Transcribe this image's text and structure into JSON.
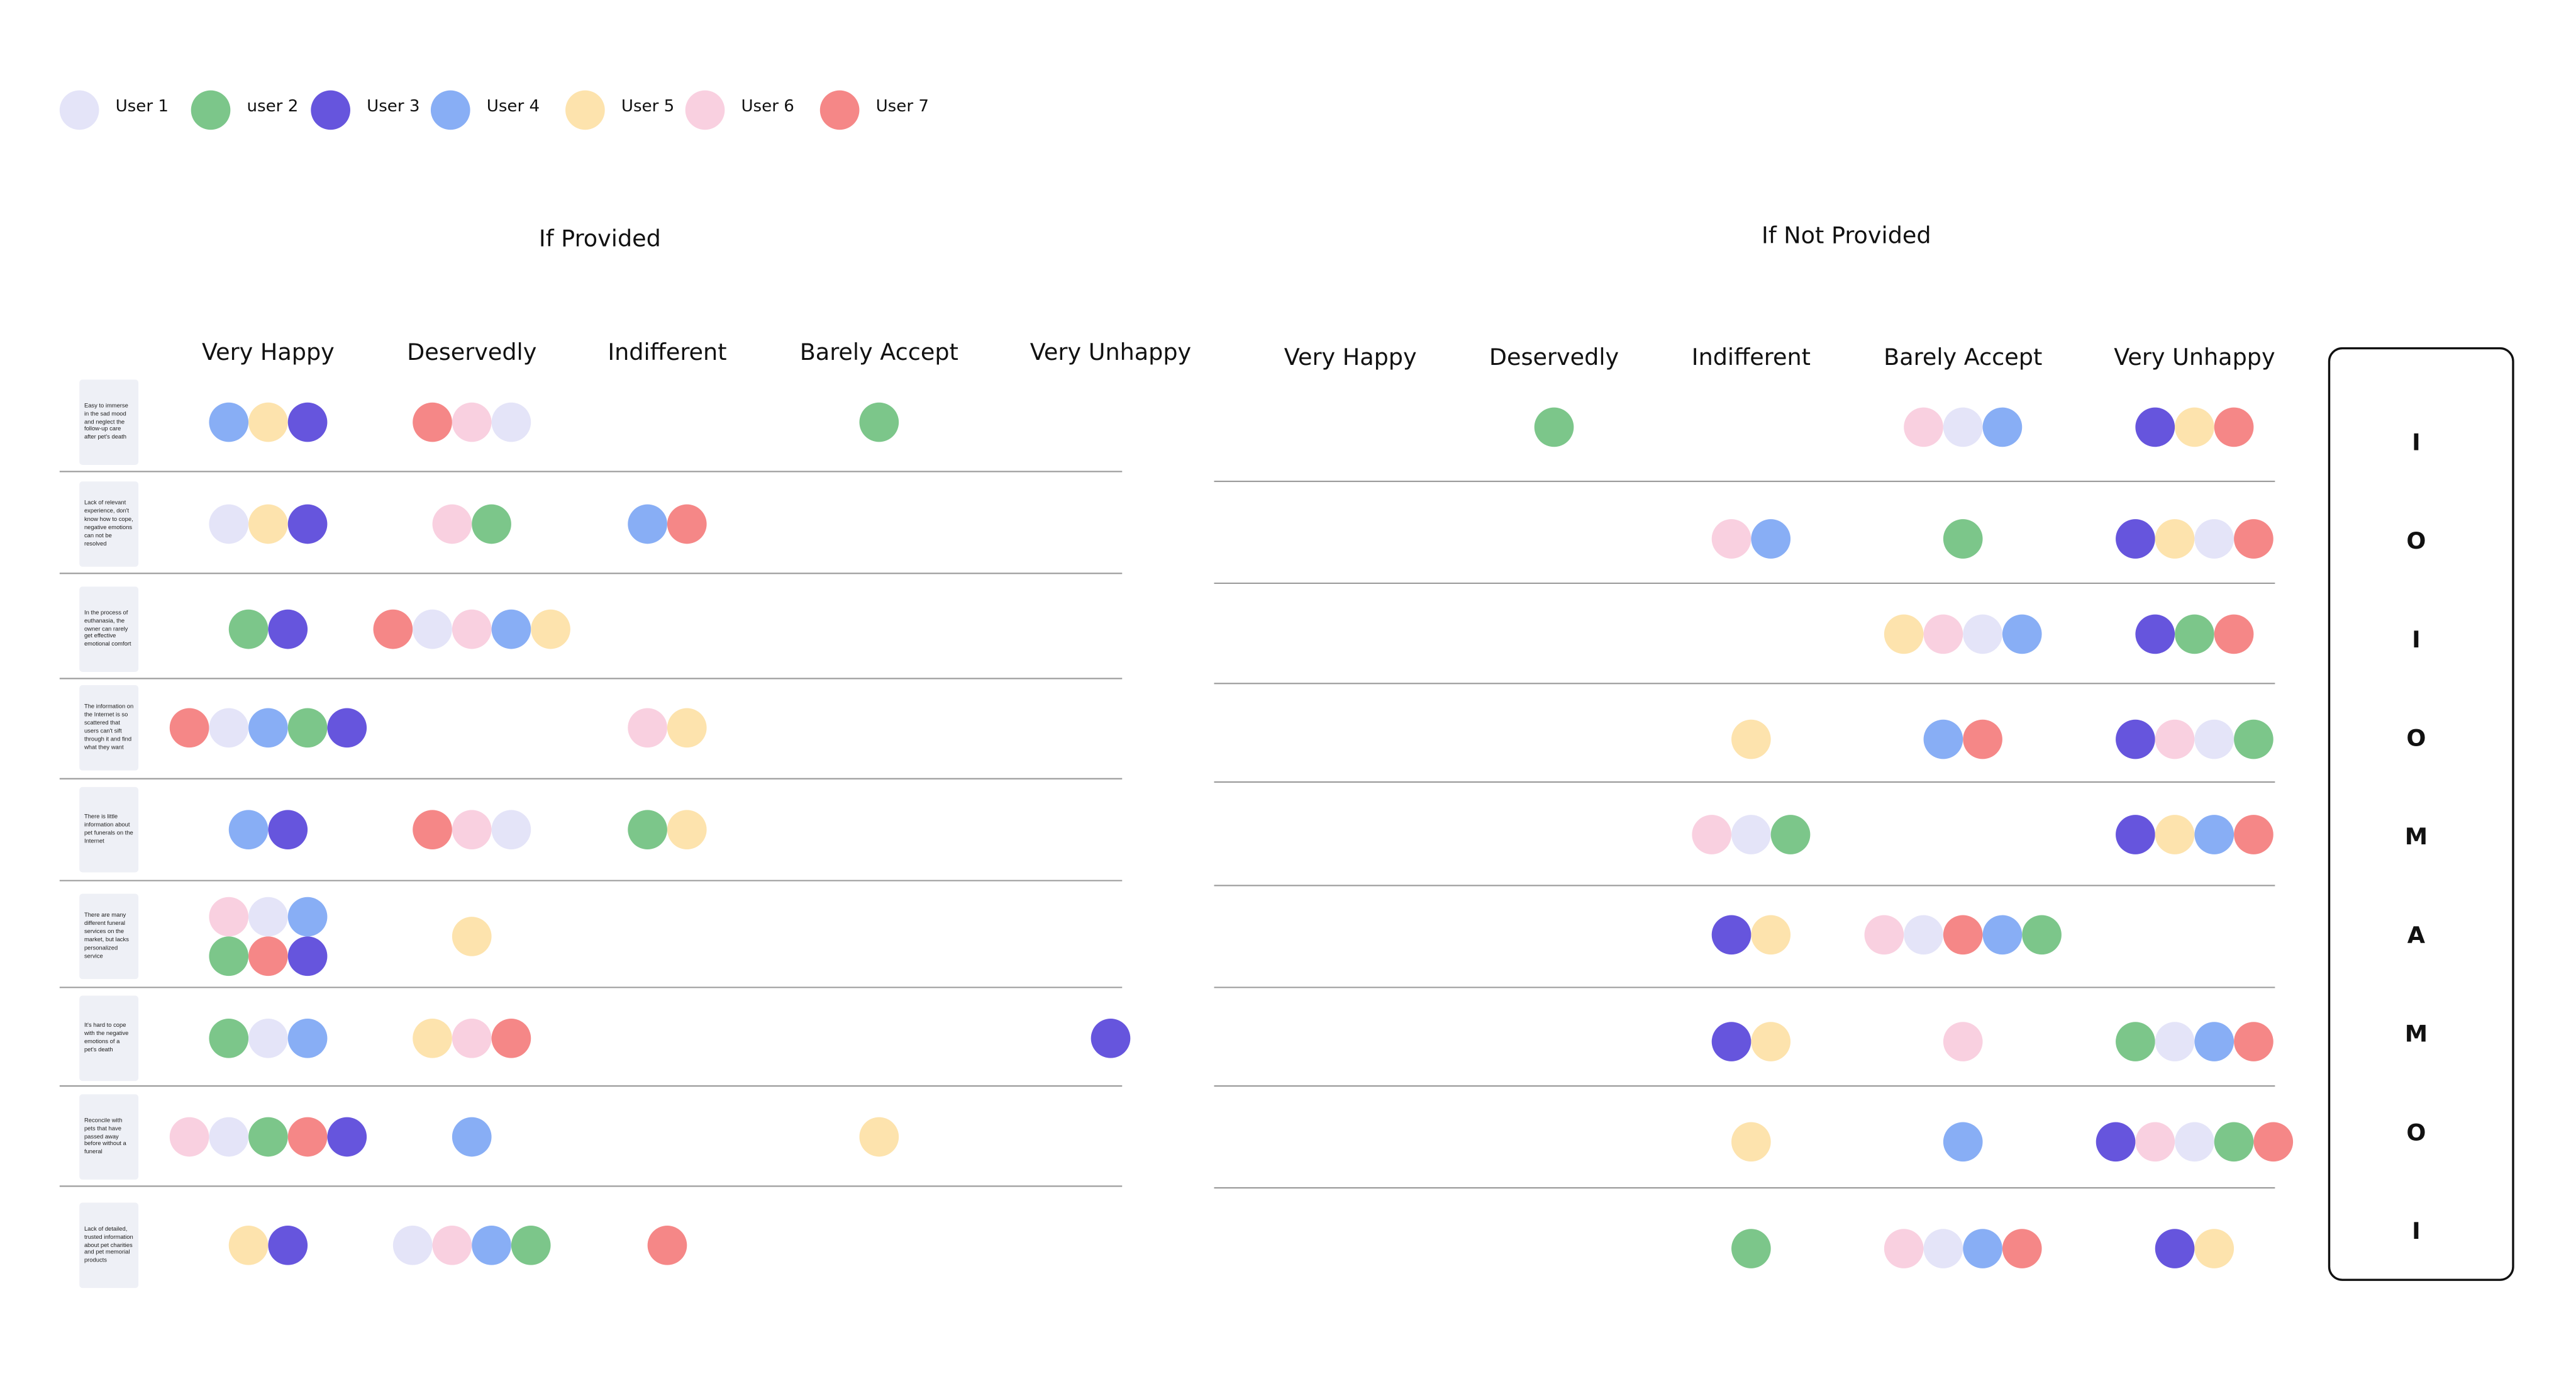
{
  "legend": [
    {
      "name": "User 1",
      "color": "#e4e4f8"
    },
    {
      "name": "user 2",
      "color": "#7cc68a"
    },
    {
      "name": "User 3",
      "color": "#6655dd"
    },
    {
      "name": "User 4",
      "color": "#88aef5"
    },
    {
      "name": "User 5",
      "color": "#fde3ad"
    },
    {
      "name": "User 6",
      "color": "#f9d0e0"
    },
    {
      "name": "User 7",
      "color": "#f58787"
    }
  ],
  "features": [
    "Easy to immerse in the sad mood and neglect the follow-up care after pet's death",
    "Lack of relevant experience, don't know how to cope, negative emotions can not be resolved",
    "In the process of euthanasia, the owner can rarely get effective emotional comfort",
    "The information on the Internet is so scattered that users can't sift through it and find what they want",
    "There is little information about pet funerals on the Internet",
    "There are many different funeral services on the market, but lacks personalized service",
    "It's hard to cope with the negative emotions of a pet's death",
    "Reconcile with pets that have passed away before without a funeral",
    "Lack of detailed, trusted information about pet charities and pet memorial products"
  ],
  "sections": [
    {
      "title": "If Provided",
      "columns": [
        "Very Happy",
        "Deservedly",
        "Indifferent",
        "Barely Accept",
        "Very Unhappy"
      ],
      "rows": [
        [
          [
            3,
            4,
            2
          ],
          [
            6,
            5,
            0
          ],
          [],
          [
            1
          ],
          []
        ],
        [
          [
            0,
            4,
            2
          ],
          [
            5,
            1
          ],
          [
            3,
            6
          ],
          [],
          []
        ],
        [
          [
            1,
            2
          ],
          [
            6,
            0,
            5,
            3,
            4
          ],
          [],
          [],
          []
        ],
        [
          [
            6,
            0,
            3,
            1,
            2
          ],
          [],
          [
            5,
            4
          ],
          [],
          []
        ],
        [
          [
            3,
            2
          ],
          [
            6,
            5,
            0
          ],
          [
            1,
            4
          ],
          [],
          []
        ],
        [
          [
            5,
            0,
            3,
            1,
            6,
            2
          ],
          [
            4
          ],
          [],
          [],
          []
        ],
        [
          [
            1,
            0,
            3
          ],
          [
            4,
            5,
            6
          ],
          [],
          [],
          [
            2
          ]
        ],
        [
          [
            5,
            0,
            1,
            6,
            2
          ],
          [
            3
          ],
          [],
          [
            4
          ],
          []
        ],
        [
          [
            4,
            2
          ],
          [
            0,
            5,
            3,
            1
          ],
          [
            6
          ],
          [],
          []
        ]
      ]
    },
    {
      "title": "If Not Provided",
      "columns": [
        "Very Happy",
        "Deservedly",
        "Indifferent",
        "Barely Accept",
        "Very Unhappy"
      ],
      "rows": [
        [
          [],
          [
            1
          ],
          [],
          [
            5,
            0,
            3
          ],
          [
            2,
            4,
            6
          ]
        ],
        [
          [],
          [],
          [
            5,
            3
          ],
          [
            1
          ],
          [
            2,
            4,
            0,
            6
          ]
        ],
        [
          [],
          [],
          [],
          [
            4,
            5,
            0,
            3
          ],
          [
            2,
            1,
            6
          ]
        ],
        [
          [],
          [],
          [
            4
          ],
          [
            3,
            6
          ],
          [
            2,
            5,
            0,
            1
          ]
        ],
        [
          [],
          [],
          [
            5,
            0,
            1
          ],
          [],
          [
            2,
            4,
            3,
            6
          ]
        ],
        [
          [],
          [],
          [
            2,
            4
          ],
          [
            5,
            0,
            6,
            3,
            1
          ],
          []
        ],
        [
          [],
          [],
          [
            2,
            4
          ],
          [
            5
          ],
          [
            1,
            0,
            3,
            6
          ]
        ],
        [
          [],
          [],
          [
            4
          ],
          [
            3
          ],
          [
            2,
            5,
            0,
            1,
            6
          ]
        ],
        [
          [],
          [],
          [
            1
          ],
          [
            5,
            0,
            3,
            6
          ],
          [
            2,
            4
          ]
        ]
      ]
    }
  ],
  "results": [
    "I",
    "O",
    "I",
    "O",
    "M",
    "A",
    "M",
    "O",
    "I"
  ]
}
